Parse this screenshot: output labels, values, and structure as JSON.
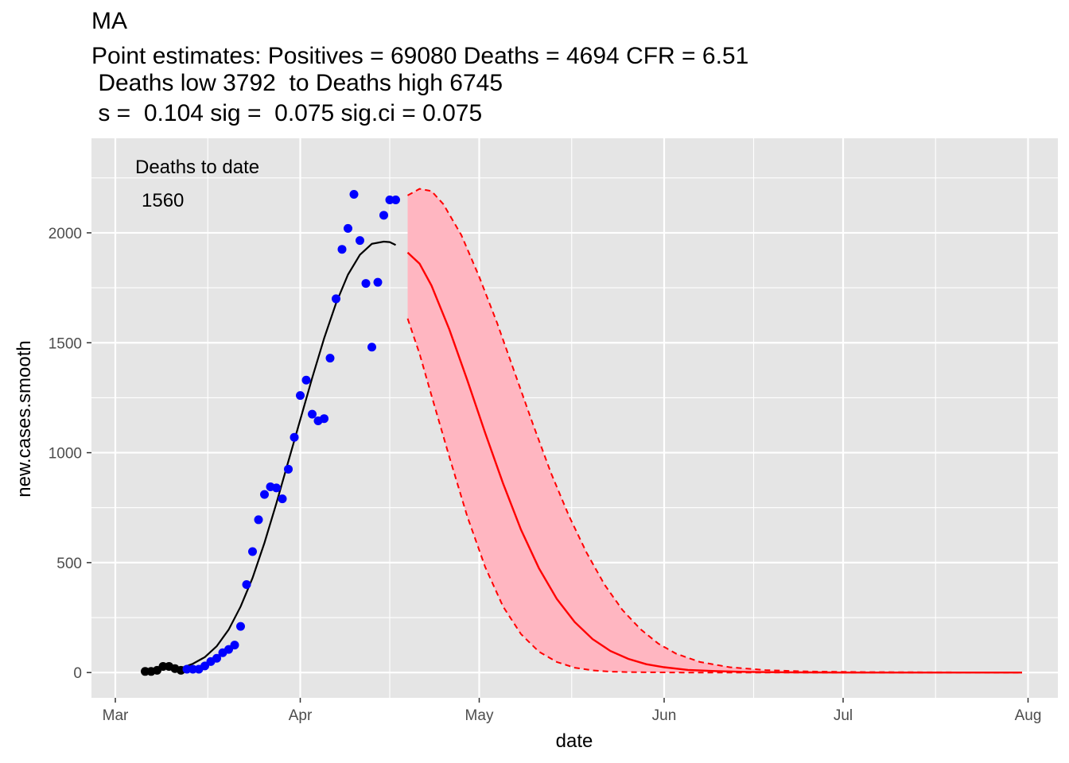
{
  "chart_data": {
    "type": "scatter",
    "title": "MA",
    "subtitle_lines": [
      "Point estimates: Positives = 69080 Deaths = 4694 CFR = 6.51",
      " Deaths low 3792  to Deaths high 6745",
      " s =  0.104 sig =  0.075 sig.ci = 0.075"
    ],
    "xlabel": "date",
    "ylabel": "new.cases.smooth",
    "x_ticks": [
      "Mar",
      "Apr",
      "May",
      "Jun",
      "Jul",
      "Aug"
    ],
    "x_tick_dates": [
      "2020-03-01",
      "2020-04-01",
      "2020-05-01",
      "2020-06-01",
      "2020-07-01",
      "2020-08-01"
    ],
    "y_ticks": [
      0,
      500,
      1000,
      1500,
      2000
    ],
    "xlim": [
      "2020-02-26",
      "2020-08-06"
    ],
    "ylim": [
      -115,
      2430
    ],
    "grid": true,
    "annotation": {
      "label": "Deaths to date",
      "value": "1560"
    },
    "series": [
      {
        "kind": "points",
        "color": "#000000",
        "x": [
          "2020-03-06",
          "2020-03-07",
          "2020-03-08",
          "2020-03-09",
          "2020-03-10",
          "2020-03-11",
          "2020-03-12"
        ],
        "y": [
          5,
          5,
          10,
          28,
          28,
          18,
          10
        ]
      },
      {
        "kind": "points",
        "color": "#0000ff",
        "x": [
          "2020-03-13",
          "2020-03-14",
          "2020-03-15",
          "2020-03-16",
          "2020-03-17",
          "2020-03-18",
          "2020-03-19",
          "2020-03-20",
          "2020-03-21",
          "2020-03-22",
          "2020-03-23",
          "2020-03-24",
          "2020-03-25",
          "2020-03-26",
          "2020-03-27",
          "2020-03-28",
          "2020-03-29",
          "2020-03-30",
          "2020-03-31",
          "2020-04-01",
          "2020-04-02",
          "2020-04-03",
          "2020-04-04",
          "2020-04-05",
          "2020-04-06",
          "2020-04-07",
          "2020-04-08",
          "2020-04-09",
          "2020-04-10",
          "2020-04-11",
          "2020-04-12",
          "2020-04-13",
          "2020-04-14",
          "2020-04-15",
          "2020-04-16",
          "2020-04-17"
        ],
        "y": [
          15,
          15,
          15,
          30,
          50,
          65,
          90,
          105,
          125,
          210,
          400,
          550,
          695,
          810,
          845,
          840,
          790,
          925,
          1070,
          1260,
          1330,
          1175,
          1145,
          1155,
          1430,
          1700,
          1925,
          2020,
          2175,
          1965,
          1770,
          1480,
          1775,
          2080,
          2150,
          2150
        ]
      },
      {
        "kind": "fit_line",
        "color": "#000000",
        "x": [
          "2020-03-12",
          "2020-03-14",
          "2020-03-16",
          "2020-03-18",
          "2020-03-20",
          "2020-03-22",
          "2020-03-24",
          "2020-03-26",
          "2020-03-28",
          "2020-03-30",
          "2020-04-01",
          "2020-04-03",
          "2020-04-05",
          "2020-04-07",
          "2020-04-09",
          "2020-04-11",
          "2020-04-13",
          "2020-04-15",
          "2020-04-16",
          "2020-04-17"
        ],
        "y": [
          20,
          40,
          70,
          120,
          195,
          300,
          430,
          590,
          770,
          960,
          1150,
          1340,
          1520,
          1680,
          1810,
          1900,
          1950,
          1960,
          1958,
          1945
        ]
      },
      {
        "kind": "projection",
        "color": "#ff0000",
        "x": [
          "2020-04-19",
          "2020-04-21",
          "2020-04-23",
          "2020-04-26",
          "2020-04-29",
          "2020-05-02",
          "2020-05-05",
          "2020-05-08",
          "2020-05-11",
          "2020-05-14",
          "2020-05-17",
          "2020-05-20",
          "2020-05-23",
          "2020-05-26",
          "2020-05-29",
          "2020-06-01",
          "2020-06-05",
          "2020-06-10",
          "2020-06-15",
          "2020-06-22",
          "2020-07-01",
          "2020-07-15",
          "2020-07-31"
        ],
        "y": [
          1910,
          1860,
          1760,
          1560,
          1330,
          1090,
          860,
          650,
          475,
          335,
          230,
          152,
          98,
          62,
          38,
          24,
          12,
          6,
          3,
          1,
          0,
          0,
          0
        ]
      },
      {
        "kind": "ci_upper",
        "color": "#ff0000",
        "x": [
          "2020-04-19",
          "2020-04-21",
          "2020-04-23",
          "2020-04-25",
          "2020-04-28",
          "2020-05-01",
          "2020-05-04",
          "2020-05-07",
          "2020-05-10",
          "2020-05-13",
          "2020-05-16",
          "2020-05-19",
          "2020-05-22",
          "2020-05-25",
          "2020-05-28",
          "2020-05-31",
          "2020-06-03",
          "2020-06-07",
          "2020-06-12",
          "2020-06-18",
          "2020-06-25",
          "2020-07-05",
          "2020-07-18",
          "2020-07-31"
        ],
        "y": [
          2170,
          2200,
          2190,
          2130,
          1990,
          1800,
          1590,
          1360,
          1130,
          910,
          715,
          545,
          400,
          285,
          198,
          132,
          86,
          48,
          24,
          11,
          5,
          2,
          1,
          0
        ]
      },
      {
        "kind": "ci_lower",
        "color": "#ff0000",
        "x": [
          "2020-04-19",
          "2020-04-21",
          "2020-04-23",
          "2020-04-26",
          "2020-04-29",
          "2020-05-02",
          "2020-05-05",
          "2020-05-08",
          "2020-05-11",
          "2020-05-14",
          "2020-05-17",
          "2020-05-20",
          "2020-05-23",
          "2020-05-26",
          "2020-05-30",
          "2020-06-04",
          "2020-06-10",
          "2020-06-20",
          "2020-07-05",
          "2020-07-31"
        ],
        "y": [
          1610,
          1450,
          1260,
          980,
          710,
          480,
          300,
          175,
          95,
          48,
          22,
          10,
          4,
          2,
          1,
          0,
          0,
          0,
          0,
          0
        ]
      }
    ],
    "colors": {
      "panel": "#e5e5e5",
      "grid": "#ffffff",
      "band_fill": "#ffb6c1"
    }
  }
}
